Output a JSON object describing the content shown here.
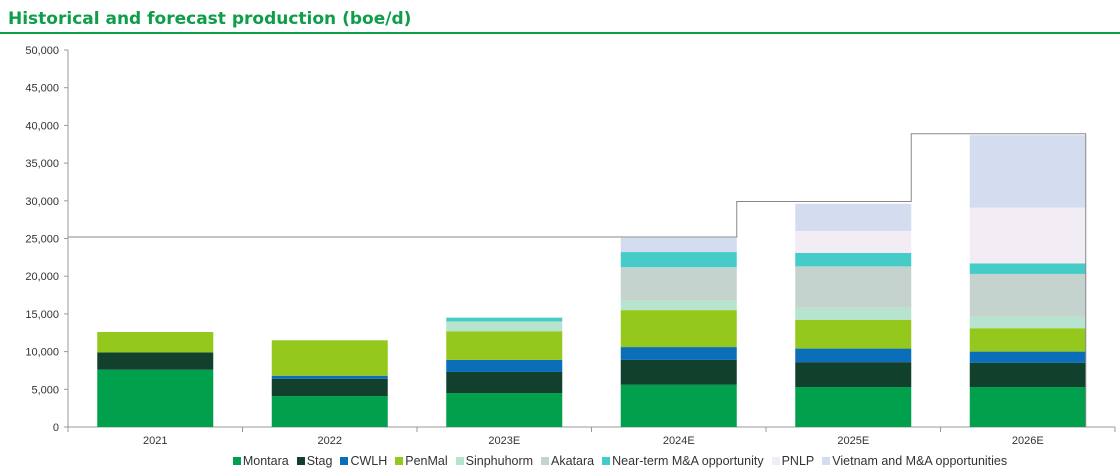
{
  "title": "Historical and forecast production (boe/d)",
  "colors": {
    "title": "#0e9e4a",
    "rule": "#0e9e4a",
    "axis": "#999999",
    "text": "#333333",
    "outline": "#888888"
  },
  "chart_data": {
    "type": "bar",
    "stacked": true,
    "title": "Historical and forecast production (boe/d)",
    "xlabel": "",
    "ylabel": "",
    "ylim": [
      0,
      50000
    ],
    "yticks": [
      0,
      5000,
      10000,
      15000,
      20000,
      25000,
      30000,
      35000,
      40000,
      45000,
      50000
    ],
    "ytick_labels": [
      "0",
      "5,000",
      "10,000",
      "15,000",
      "20,000",
      "25,000",
      "30,000",
      "35,000",
      "40,000",
      "45,000",
      "50,000"
    ],
    "grid": false,
    "legend": "bottom",
    "categories": [
      "2021",
      "2022",
      "2023E",
      "2024E",
      "2025E",
      "2026E"
    ],
    "outline_totals": [
      null,
      null,
      25200,
      25200,
      29900,
      38900
    ],
    "series": [
      {
        "name": "Montara",
        "color": "#00a04c",
        "values": [
          7600,
          4100,
          4500,
          5600,
          5300,
          5300
        ]
      },
      {
        "name": "Stag",
        "color": "#11402d",
        "values": [
          2300,
          2300,
          2800,
          3300,
          3300,
          3200
        ]
      },
      {
        "name": "CWLH",
        "color": "#0a6eb8",
        "values": [
          0,
          400,
          1600,
          1700,
          1800,
          1500
        ]
      },
      {
        "name": "PenMal",
        "color": "#95c81c",
        "values": [
          2700,
          4700,
          3800,
          4900,
          3800,
          3100
        ]
      },
      {
        "name": "Sinphuhorm",
        "color": "#b7e4ce",
        "values": [
          0,
          0,
          1300,
          1300,
          1600,
          1500
        ]
      },
      {
        "name": "Akatara",
        "color": "#c4d3cd",
        "values": [
          0,
          0,
          0,
          4400,
          5500,
          5700
        ]
      },
      {
        "name": "Near-term M&A opportunity",
        "color": "#45ccc9",
        "values": [
          0,
          0,
          500,
          2000,
          1800,
          1400
        ]
      },
      {
        "name": "PNLP",
        "color": "#f2ecf5",
        "values": [
          0,
          0,
          0,
          0,
          2900,
          7400
        ]
      },
      {
        "name": "Vietnam and M&A opportunities",
        "color": "#d4dcf0",
        "values": [
          0,
          0,
          0,
          1900,
          3600,
          9600
        ]
      }
    ]
  }
}
